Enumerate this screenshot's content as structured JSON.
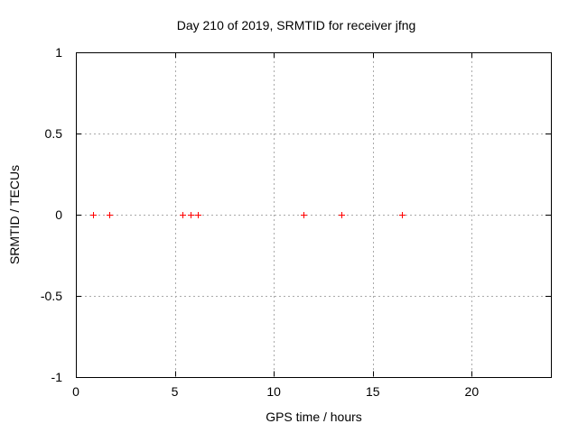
{
  "chart_data": {
    "type": "scatter",
    "title": "Day 210 of 2019, SRMTID for receiver jfng",
    "xlabel": "GPS time / hours",
    "ylabel": "SRMTID / TECUs",
    "xlim": [
      0,
      24
    ],
    "ylim": [
      -1,
      1
    ],
    "xticks": [
      0,
      5,
      10,
      15,
      20
    ],
    "xtick_labels": [
      "0",
      "5",
      "10",
      "15",
      "20"
    ],
    "yticks": [
      1,
      0.5,
      0,
      -0.5,
      -1
    ],
    "ytick_labels": [
      "1",
      "0.5",
      "0",
      "-0.5",
      "-1"
    ],
    "grid": true,
    "legend": false,
    "series": [
      {
        "name": "SRMTID",
        "marker": "plus",
        "color": "#ff0000",
        "points": [
          [
            0.85,
            0
          ],
          [
            1.7,
            0
          ],
          [
            5.4,
            0
          ],
          [
            5.8,
            0
          ],
          [
            6.15,
            0
          ],
          [
            11.5,
            0
          ],
          [
            13.4,
            0
          ],
          [
            16.45,
            0
          ]
        ]
      }
    ],
    "colors": {
      "background": "#ffffff",
      "frame": "#000000",
      "grid": "#aaaaaa",
      "text": "#000000"
    }
  }
}
